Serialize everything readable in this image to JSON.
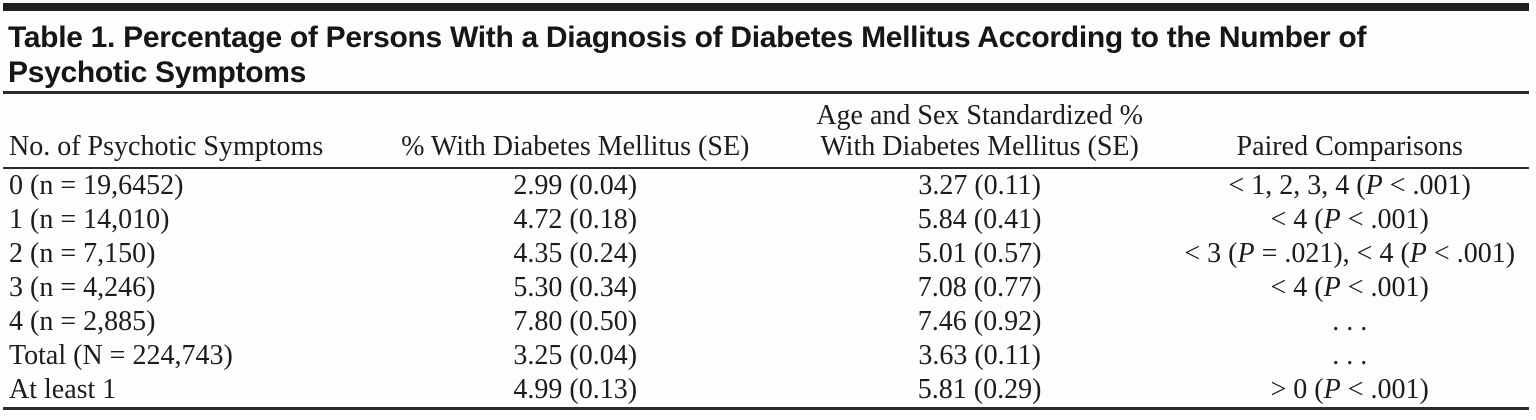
{
  "colors": {
    "text": "#1c1c1c",
    "rule": "#2b2b2b",
    "background": "#fdfdfc"
  },
  "table": {
    "title": "Table 1. Percentage of Persons With a Diagnosis of Diabetes Mellitus According to the Number of Psychotic Symptoms",
    "columns": {
      "symptoms": "No. of Psychotic Symptoms",
      "pct_dm": "% With Diabetes Mellitus (SE)",
      "std_pct_line1": "Age and Sex Standardized %",
      "std_pct_line2": "With Diabetes Mellitus (SE)",
      "paired": "Paired Comparisons"
    },
    "rows": [
      {
        "symptoms": "0 (n = 19,6452)",
        "pct_dm": "2.99 (0.04)",
        "std_pct_dm": "3.27 (0.11)",
        "paired": "< 1, 2, 3, 4 (P < .001)"
      },
      {
        "symptoms": "1 (n = 14,010)",
        "pct_dm": "4.72 (0.18)",
        "std_pct_dm": "5.84 (0.41)",
        "paired": "< 4 (P < .001)"
      },
      {
        "symptoms": "2 (n = 7,150)",
        "pct_dm": "4.35 (0.24)",
        "std_pct_dm": "5.01 (0.57)",
        "paired": "< 3 (P = .021), < 4 (P < .001)"
      },
      {
        "symptoms": "3 (n = 4,246)",
        "pct_dm": "5.30 (0.34)",
        "std_pct_dm": "7.08 (0.77)",
        "paired": "< 4 (P < .001)"
      },
      {
        "symptoms": "4 (n = 2,885)",
        "pct_dm": "7.80 (0.50)",
        "std_pct_dm": "7.46 (0.92)",
        "paired": ". . ."
      },
      {
        "symptoms": "Total (N = 224,743)",
        "pct_dm": "3.25 (0.04)",
        "std_pct_dm": "3.63 (0.11)",
        "paired": ". . ."
      },
      {
        "symptoms": "At least 1",
        "pct_dm": "4.99 (0.13)",
        "std_pct_dm": "5.81 (0.29)",
        "paired": "> 0 (P < .001)"
      }
    ]
  }
}
